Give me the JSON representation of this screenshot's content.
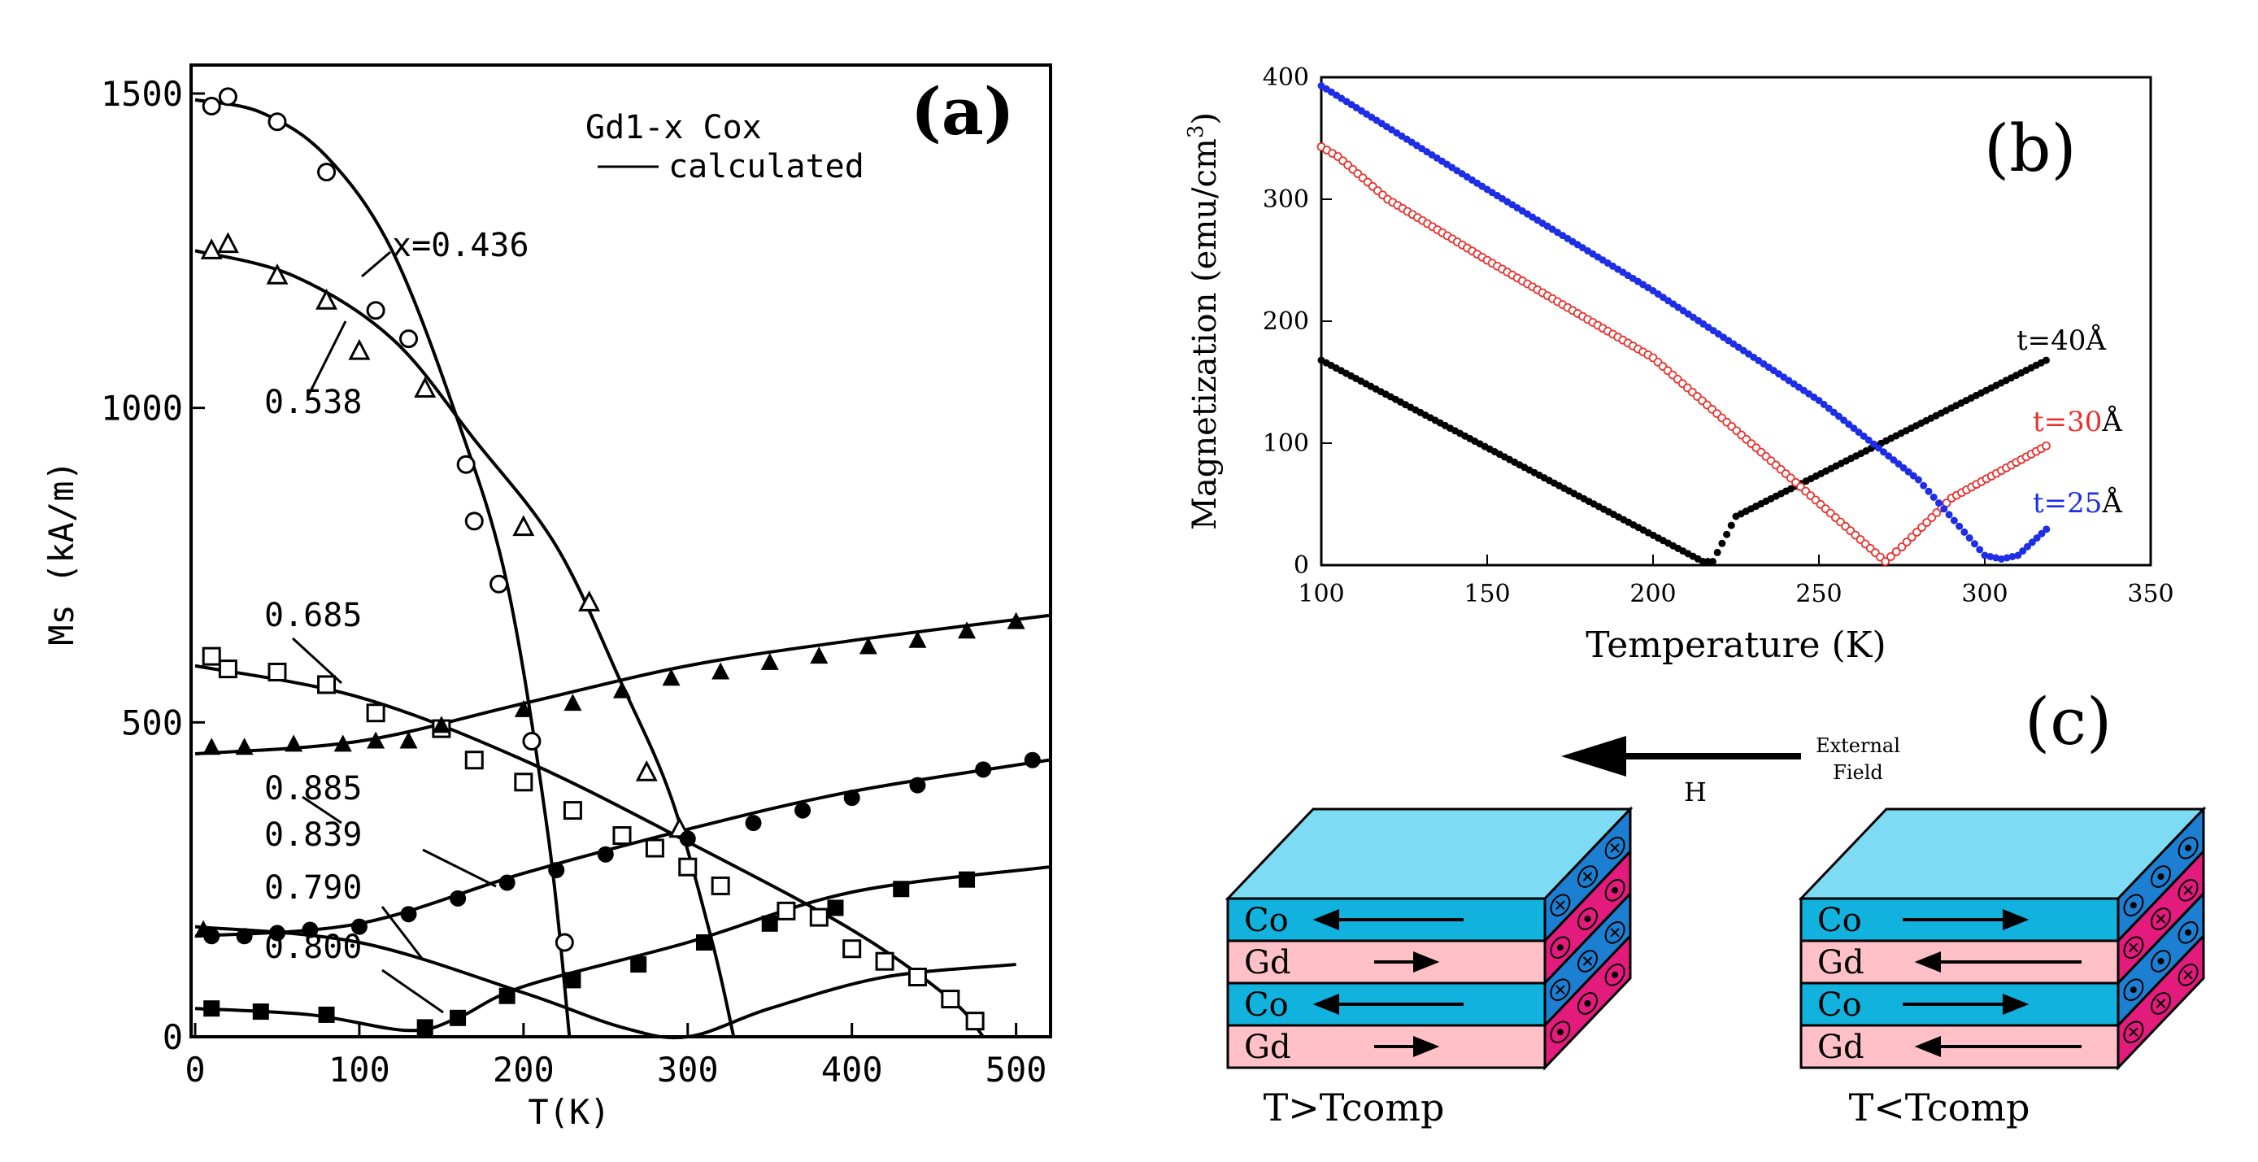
{
  "chart_data": [
    {
      "panel": "(a)",
      "type": "line",
      "title": "Gd1-x Cox",
      "legend_line": "calculated",
      "xlabel": "T(K)",
      "ylabel": "Ms (kA/m)",
      "xlim": [
        0,
        520
      ],
      "ylim": [
        0,
        1500
      ],
      "xticks": [
        0,
        100,
        200,
        300,
        400,
        500
      ],
      "yticks": [
        0,
        500,
        1000,
        1500
      ],
      "series": [
        {
          "name": "x=0.436",
          "marker": "circle",
          "line": [
            [
              0,
              1490
            ],
            [
              40,
              1470
            ],
            [
              80,
              1400
            ],
            [
              120,
              1250
            ],
            [
              160,
              980
            ],
            [
              190,
              720
            ],
            [
              215,
              320
            ],
            [
              228,
              0
            ]
          ],
          "points": [
            [
              10,
              1480
            ],
            [
              20,
              1495
            ],
            [
              50,
              1455
            ],
            [
              80,
              1375
            ],
            [
              110,
              1155
            ],
            [
              130,
              1110
            ],
            [
              165,
              910
            ],
            [
              170,
              820
            ],
            [
              185,
              720
            ],
            [
              205,
              470
            ],
            [
              225,
              150
            ]
          ]
        },
        {
          "name": "0.538",
          "marker": "triangle",
          "line": [
            [
              0,
              1250
            ],
            [
              60,
              1210
            ],
            [
              120,
              1110
            ],
            [
              170,
              950
            ],
            [
              220,
              780
            ],
            [
              260,
              560
            ],
            [
              290,
              380
            ],
            [
              315,
              150
            ],
            [
              328,
              0
            ]
          ],
          "points": [
            [
              10,
              1250
            ],
            [
              20,
              1260
            ],
            [
              50,
              1210
            ],
            [
              80,
              1170
            ],
            [
              100,
              1090
            ],
            [
              140,
              1030
            ],
            [
              200,
              810
            ],
            [
              240,
              690
            ],
            [
              275,
              420
            ],
            [
              295,
              330
            ]
          ]
        },
        {
          "name": "0.685",
          "marker": "square",
          "line": [
            [
              0,
              590
            ],
            [
              100,
              540
            ],
            [
              200,
              440
            ],
            [
              300,
              310
            ],
            [
              400,
              170
            ],
            [
              460,
              60
            ],
            [
              480,
              0
            ]
          ],
          "points": [
            [
              10,
              605
            ],
            [
              20,
              585
            ],
            [
              50,
              580
            ],
            [
              80,
              560
            ],
            [
              110,
              515
            ],
            [
              150,
              490
            ],
            [
              170,
              440
            ],
            [
              200,
              405
            ],
            [
              230,
              360
            ],
            [
              260,
              320
            ],
            [
              280,
              300
            ],
            [
              300,
              270
            ],
            [
              320,
              240
            ],
            [
              360,
              200
            ],
            [
              380,
              190
            ],
            [
              400,
              140
            ],
            [
              420,
              120
            ],
            [
              440,
              95
            ],
            [
              460,
              60
            ],
            [
              475,
              25
            ]
          ]
        },
        {
          "name": "0.885",
          "marker": "filled-triangle",
          "line": [
            [
              0,
              450
            ],
            [
              100,
              470
            ],
            [
              200,
              530
            ],
            [
              300,
              590
            ],
            [
              400,
              630
            ],
            [
              520,
              670
            ]
          ],
          "points": [
            [
              10,
              460
            ],
            [
              30,
              460
            ],
            [
              60,
              465
            ],
            [
              90,
              465
            ],
            [
              110,
              470
            ],
            [
              130,
              470
            ],
            [
              150,
              495
            ],
            [
              200,
              520
            ],
            [
              230,
              530
            ],
            [
              260,
              550
            ],
            [
              290,
              570
            ],
            [
              320,
              580
            ],
            [
              350,
              595
            ],
            [
              380,
              605
            ],
            [
              410,
              620
            ],
            [
              440,
              630
            ],
            [
              470,
              645
            ],
            [
              500,
              660
            ]
          ]
        },
        {
          "name": "0.839",
          "marker": "filled-circle",
          "line": [
            [
              0,
              160
            ],
            [
              100,
              180
            ],
            [
              200,
              260
            ],
            [
              300,
              330
            ],
            [
              400,
              390
            ],
            [
              520,
              440
            ]
          ],
          "points": [
            [
              10,
              160
            ],
            [
              30,
              160
            ],
            [
              50,
              165
            ],
            [
              70,
              170
            ],
            [
              100,
              175
            ],
            [
              130,
              195
            ],
            [
              160,
              220
            ],
            [
              190,
              245
            ],
            [
              220,
              265
            ],
            [
              250,
              290
            ],
            [
              300,
              315
            ],
            [
              340,
              340
            ],
            [
              370,
              360
            ],
            [
              400,
              380
            ],
            [
              440,
              400
            ],
            [
              480,
              425
            ],
            [
              510,
              440
            ]
          ]
        },
        {
          "name": "0.790",
          "marker": "filled-square",
          "line": [
            [
              0,
              45
            ],
            [
              70,
              35
            ],
            [
              130,
              10
            ],
            [
              160,
              30
            ],
            [
              200,
              80
            ],
            [
              300,
              150
            ],
            [
              400,
              230
            ],
            [
              520,
              270
            ]
          ],
          "points": [
            [
              10,
              45
            ],
            [
              40,
              40
            ],
            [
              80,
              35
            ],
            [
              140,
              15
            ],
            [
              160,
              30
            ],
            [
              190,
              65
            ],
            [
              230,
              90
            ],
            [
              270,
              115
            ],
            [
              310,
              150
            ],
            [
              350,
              180
            ],
            [
              390,
              205
            ],
            [
              430,
              235
            ],
            [
              470,
              250
            ]
          ]
        },
        {
          "name": "0.800",
          "marker": "filled-triangle",
          "line": [
            [
              0,
              175
            ],
            [
              100,
              150
            ],
            [
              200,
              70
            ],
            [
              260,
              15
            ],
            [
              300,
              0
            ],
            [
              350,
              45
            ],
            [
              420,
              95
            ],
            [
              500,
              115
            ]
          ],
          "points": [
            [
              5,
              170
            ]
          ]
        }
      ],
      "labels": [
        "x=0.436",
        "0.538",
        "0.685",
        "0.885",
        "0.839",
        "0.790",
        "0.800"
      ],
      "panel_label": "(a)"
    },
    {
      "panel": "(b)",
      "type": "scatter",
      "xlabel": "Temperature (K)",
      "ylabel": "Magnetization (emu/cm",
      "ylabel_sup": "3",
      "ylabel_end": ")",
      "xlim": [
        100,
        350
      ],
      "ylim": [
        0,
        400
      ],
      "xticks": [
        100,
        150,
        200,
        250,
        300,
        350
      ],
      "yticks": [
        0,
        100,
        200,
        300,
        400
      ],
      "series": [
        {
          "name": "t=40",
          "unit": "Å",
          "color": "#000000",
          "hollow": false,
          "points": [
            [
              100,
              168
            ],
            [
              215,
              3
            ],
            [
              218,
              3
            ],
            [
              225,
              40
            ],
            [
              320,
              170
            ]
          ]
        },
        {
          "name": "t=30",
          "unit": "Å",
          "color": "#e8322e",
          "hollow": true,
          "points": [
            [
              100,
              343
            ],
            [
              105,
              335
            ],
            [
              120,
              300
            ],
            [
              150,
              250
            ],
            [
              200,
              170
            ],
            [
              240,
              75
            ],
            [
              270,
              3
            ],
            [
              275,
              15
            ],
            [
              290,
              55
            ],
            [
              320,
              100
            ]
          ]
        },
        {
          "name": "t=25",
          "unit": "Å",
          "color": "#1d2ee6",
          "hollow": false,
          "points": [
            [
              100,
              393
            ],
            [
              150,
              308
            ],
            [
              200,
              225
            ],
            [
              250,
              135
            ],
            [
              280,
              70
            ],
            [
              300,
              8
            ],
            [
              305,
              5
            ],
            [
              310,
              8
            ],
            [
              320,
              33
            ]
          ]
        }
      ],
      "panel_label": "(b)"
    }
  ],
  "diagram_c": {
    "panel_label": "(c)",
    "field_label": "H",
    "external_field_line1": "External",
    "external_field_line2": "Field",
    "stack_left": {
      "caption": "T>Tcomp",
      "layers": [
        "Co",
        "Gd",
        "Co",
        "Gd"
      ]
    },
    "stack_right": {
      "caption": "T<Tcomp",
      "layers": [
        "Co",
        "Gd",
        "Co",
        "Gd"
      ]
    },
    "colors": {
      "co": "#11b3de",
      "gd": "#ffc0c8",
      "top": "#7ddcf3",
      "side_co": "#1d7fd1",
      "side_gd": "#e31b7c"
    }
  }
}
